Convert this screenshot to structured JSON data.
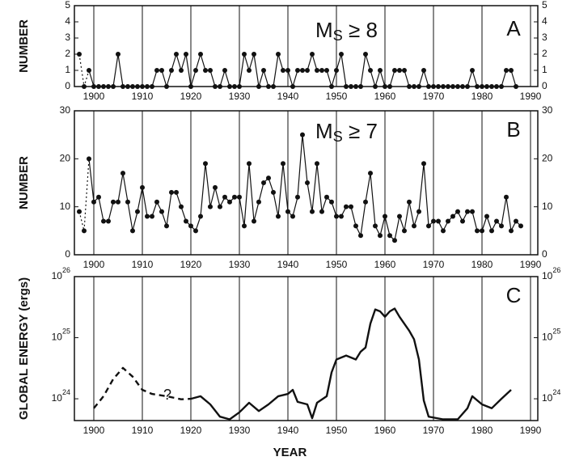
{
  "chart_data": [
    {
      "type": "line",
      "ylabel": "NUMBER",
      "annotation": "MS ≥ 8",
      "panel_label": "A",
      "x": [
        1897,
        1898,
        1899,
        1900,
        1901,
        1902,
        1903,
        1904,
        1905,
        1906,
        1907,
        1908,
        1909,
        1910,
        1911,
        1912,
        1913,
        1914,
        1915,
        1916,
        1917,
        1918,
        1919,
        1920,
        1921,
        1922,
        1923,
        1924,
        1925,
        1926,
        1927,
        1928,
        1929,
        1930,
        1931,
        1932,
        1933,
        1934,
        1935,
        1936,
        1937,
        1938,
        1939,
        1940,
        1941,
        1942,
        1943,
        1944,
        1945,
        1946,
        1947,
        1948,
        1949,
        1950,
        1951,
        1952,
        1953,
        1954,
        1955,
        1956,
        1957,
        1958,
        1959,
        1960,
        1961,
        1962,
        1963,
        1964,
        1965,
        1966,
        1967,
        1968,
        1969,
        1970,
        1971,
        1972,
        1973,
        1974,
        1975,
        1976,
        1977,
        1978,
        1979,
        1980,
        1981,
        1982,
        1983,
        1984,
        1985,
        1986,
        1987
      ],
      "values": [
        2,
        0,
        1,
        0,
        0,
        0,
        0,
        0,
        2,
        0,
        0,
        0,
        0,
        0,
        0,
        0,
        1,
        1,
        0,
        1,
        2,
        1,
        2,
        0,
        1,
        2,
        1,
        1,
        0,
        0,
        1,
        0,
        0,
        0,
        2,
        1,
        2,
        0,
        1,
        0,
        0,
        2,
        1,
        1,
        0,
        1,
        1,
        1,
        2,
        1,
        1,
        1,
        0,
        1,
        2,
        0,
        0,
        0,
        0,
        2,
        1,
        0,
        1,
        0,
        0,
        1,
        1,
        1,
        0,
        0,
        0,
        1,
        0,
        0,
        0,
        0,
        0,
        0,
        0,
        0,
        0,
        1,
        0,
        0,
        0,
        0,
        0,
        0,
        1,
        1,
        0
      ],
      "color": "#111111",
      "markers": true,
      "dashed_before": 1899,
      "xlim": [
        1896,
        1991.5
      ],
      "xticks": [
        1900,
        1910,
        1920,
        1930,
        1940,
        1950,
        1960,
        1970,
        1980,
        1990
      ],
      "ylim": [
        0,
        5
      ],
      "yticks": [
        0,
        1,
        2,
        3,
        4,
        5
      ],
      "grid": "x"
    },
    {
      "type": "line",
      "ylabel": "NUMBER",
      "annotation": "MS ≥ 7",
      "panel_label": "B",
      "x": [
        1897,
        1898,
        1899,
        1900,
        1901,
        1902,
        1903,
        1904,
        1905,
        1906,
        1907,
        1908,
        1909,
        1910,
        1911,
        1912,
        1913,
        1914,
        1915,
        1916,
        1917,
        1918,
        1919,
        1920,
        1921,
        1922,
        1923,
        1924,
        1925,
        1926,
        1927,
        1928,
        1929,
        1930,
        1931,
        1932,
        1933,
        1934,
        1935,
        1936,
        1937,
        1938,
        1939,
        1940,
        1941,
        1942,
        1943,
        1944,
        1945,
        1946,
        1947,
        1948,
        1949,
        1950,
        1951,
        1952,
        1953,
        1954,
        1955,
        1956,
        1957,
        1958,
        1959,
        1960,
        1961,
        1962,
        1963,
        1964,
        1965,
        1966,
        1967,
        1968,
        1969,
        1970,
        1971,
        1972,
        1973,
        1974,
        1975,
        1976,
        1977,
        1978,
        1979,
        1980,
        1981,
        1982,
        1983,
        1984,
        1985,
        1986,
        1987,
        1988
      ],
      "values": [
        9,
        5,
        20,
        11,
        12,
        7,
        7,
        11,
        11,
        17,
        11,
        5,
        9,
        14,
        8,
        8,
        11,
        9,
        6,
        13,
        13,
        10,
        7,
        6,
        5,
        8,
        19,
        10,
        14,
        10,
        12,
        11,
        12,
        12,
        6,
        19,
        7,
        11,
        15,
        16,
        13,
        8,
        19,
        9,
        8,
        12,
        25,
        15,
        9,
        19,
        9,
        12,
        11,
        8,
        8,
        10,
        10,
        6,
        4,
        11,
        17,
        6,
        4,
        8,
        4,
        3,
        8,
        5,
        11,
        6,
        9,
        19,
        6,
        7,
        7,
        5,
        7,
        8,
        9,
        7,
        9,
        9,
        5,
        5,
        8,
        5,
        7,
        6,
        12,
        5,
        7,
        6
      ],
      "color": "#111111",
      "markers": true,
      "dashed_before": 1899,
      "xlim": [
        1896,
        1991.5
      ],
      "xticks": [
        1900,
        1910,
        1920,
        1930,
        1940,
        1950,
        1960,
        1970,
        1980,
        1990
      ],
      "ylim": [
        0,
        30
      ],
      "yticks": [
        0,
        10,
        20,
        30
      ],
      "grid": "x"
    },
    {
      "type": "line",
      "ylabel": "GLOBAL ENERGY (ergs)",
      "xlabel": "YEAR",
      "panel_label": "C",
      "note": "?",
      "x": [
        1900,
        1902,
        1904,
        1906,
        1908,
        1910,
        1912,
        1915,
        1918,
        1920,
        1922,
        1924,
        1926,
        1928,
        1930,
        1932,
        1934,
        1936,
        1938,
        1940,
        1941,
        1942,
        1944,
        1945,
        1946,
        1948,
        1949,
        1950,
        1952,
        1954,
        1955,
        1956,
        1957,
        1958,
        1959,
        1960,
        1961,
        1962,
        1963,
        1965,
        1966,
        1967,
        1968,
        1969,
        1972,
        1975,
        1977,
        1978,
        1980,
        1982,
        1984,
        1986
      ],
      "values": [
        7e+23,
        1.1e+24,
        2.1e+24,
        3.2e+24,
        2.3e+24,
        1.4e+24,
        1.2e+24,
        1.1e+24,
        9.8e+23,
        1e+24,
        1.1e+24,
        8.1e+23,
        5.1e+23,
        4.6e+23,
        6e+23,
        8.6e+23,
        6.3e+23,
        8.1e+23,
        1.1e+24,
        1.2e+24,
        1.4e+24,
        8.9e+23,
        8.1e+23,
        4.8e+23,
        8.6e+23,
        1.1e+24,
        2.7e+24,
        4.4e+24,
        5.1e+24,
        4.4e+24,
        5.9e+24,
        6.9e+24,
        1.7e+25,
        2.9e+25,
        2.7e+25,
        2.2e+25,
        2.7e+25,
        3e+25,
        2.2e+25,
        1.3e+25,
        9.4e+24,
        4.4e+24,
        9.4e+23,
        5.1e+23,
        4.6e+23,
        4.6e+23,
        7e+23,
        1.1e+24,
        8.1e+23,
        7e+23,
        1e+24,
        1.4e+24
      ],
      "color": "#111111",
      "markers": false,
      "dashed_before": 1920,
      "log_scale": true,
      "xlim": [
        1896,
        1991.5
      ],
      "xticks": [
        1900,
        1910,
        1920,
        1930,
        1940,
        1950,
        1960,
        1970,
        1980,
        1990
      ],
      "ylim": [
        4.4e+23,
        1e+26
      ],
      "yticks": [
        {
          "value": 1e+24,
          "label": "10^24"
        },
        {
          "value": 1e+25,
          "label": "10^25"
        },
        {
          "value": 1e+26,
          "label": "10^26"
        }
      ],
      "grid": "x"
    }
  ]
}
